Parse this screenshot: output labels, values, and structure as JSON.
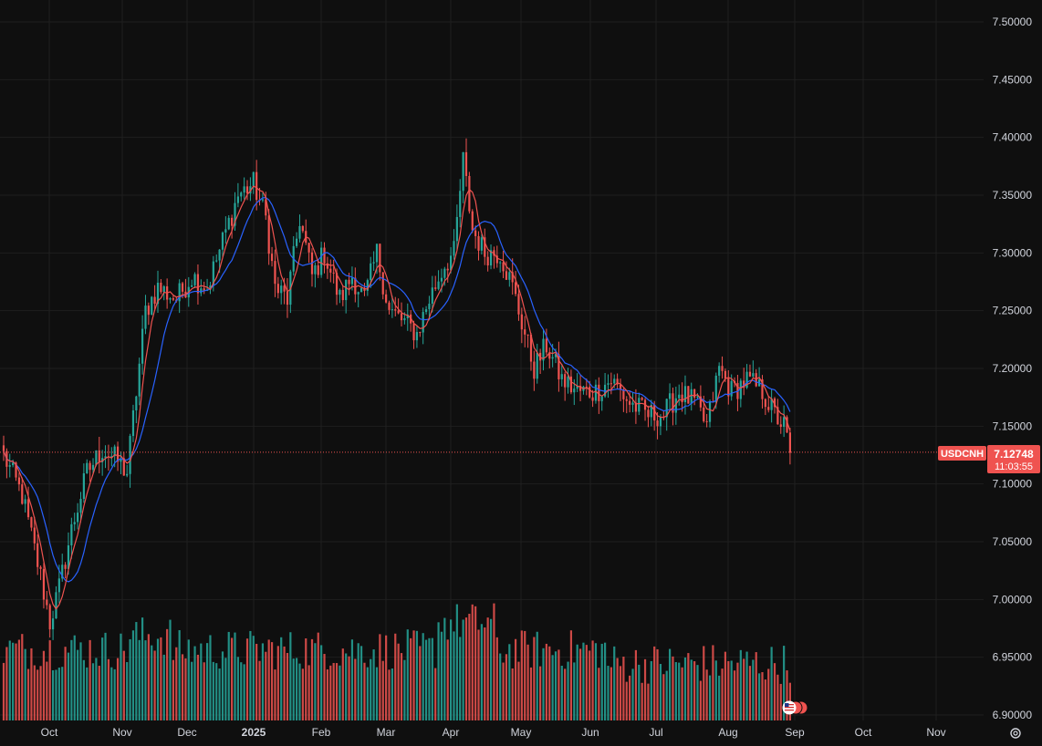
{
  "colors": {
    "background": "#0f0f0f",
    "grid": "#1f1f1f",
    "up": "#26a69a",
    "down": "#ef5350",
    "ma_fast": "#ef5350",
    "ma_slow": "#2962ff",
    "price_line": "#ef5350",
    "axis_text": "#d1d4dc"
  },
  "price_badge": {
    "symbol": "USDCNH",
    "price": "7.12748",
    "countdown": "11:03:55"
  },
  "settings_icon": "gear-icon",
  "event_flag_icon": "us-flag-icon",
  "chart_data": {
    "type": "candlestick",
    "symbol": "USDCNH",
    "ylim": [
      6.9,
      7.5
    ],
    "y_ticks": [
      "6.90000",
      "6.95000",
      "7.00000",
      "7.05000",
      "7.10000",
      "7.15000",
      "7.20000",
      "7.25000",
      "7.30000",
      "7.35000",
      "7.40000",
      "7.45000",
      "7.50000"
    ],
    "x_ticks": [
      {
        "label": "Oct",
        "bold": false
      },
      {
        "label": "Nov",
        "bold": false
      },
      {
        "label": "Dec",
        "bold": false
      },
      {
        "label": "2025",
        "bold": true
      },
      {
        "label": "Feb",
        "bold": false
      },
      {
        "label": "Mar",
        "bold": false
      },
      {
        "label": "Apr",
        "bold": false
      },
      {
        "label": "May",
        "bold": false
      },
      {
        "label": "Jun",
        "bold": false
      },
      {
        "label": "Jul",
        "bold": false
      },
      {
        "label": "Aug",
        "bold": false
      },
      {
        "label": "Sep",
        "bold": false
      },
      {
        "label": "Oct",
        "bold": false
      },
      {
        "label": "Nov",
        "bold": false
      }
    ],
    "last_price": 7.12748,
    "grid": true,
    "series": [
      {
        "type": "candlestick",
        "close_path": [
          [
            0,
            7.125
          ],
          [
            6,
            7.09
          ],
          [
            12,
            7.02
          ],
          [
            15,
            6.98
          ],
          [
            18,
            7.01
          ],
          [
            22,
            7.06
          ],
          [
            27,
            7.11
          ],
          [
            32,
            7.13
          ],
          [
            37,
            7.12
          ],
          [
            40,
            7.11
          ],
          [
            43,
            7.18
          ],
          [
            46,
            7.25
          ],
          [
            50,
            7.27
          ],
          [
            56,
            7.26
          ],
          [
            61,
            7.28
          ],
          [
            66,
            7.27
          ],
          [
            71,
            7.31
          ],
          [
            76,
            7.35
          ],
          [
            81,
            7.36
          ],
          [
            85,
            7.33
          ],
          [
            88,
            7.27
          ],
          [
            92,
            7.26
          ],
          [
            96,
            7.33
          ],
          [
            100,
            7.28
          ],
          [
            104,
            7.3
          ],
          [
            109,
            7.26
          ],
          [
            113,
            7.28
          ],
          [
            117,
            7.26
          ],
          [
            121,
            7.3
          ],
          [
            125,
            7.25
          ],
          [
            130,
            7.24
          ],
          [
            134,
            7.23
          ],
          [
            138,
            7.26
          ],
          [
            143,
            7.29
          ],
          [
            146,
            7.3
          ],
          [
            149,
            7.38
          ],
          [
            152,
            7.32
          ],
          [
            156,
            7.3
          ],
          [
            161,
            7.3
          ],
          [
            165,
            7.27
          ],
          [
            169,
            7.23
          ],
          [
            172,
            7.2
          ],
          [
            176,
            7.22
          ],
          [
            181,
            7.19
          ],
          [
            186,
            7.18
          ],
          [
            192,
            7.18
          ],
          [
            197,
            7.19
          ],
          [
            203,
            7.17
          ],
          [
            209,
            7.16
          ],
          [
            214,
            7.16
          ],
          [
            219,
            7.18
          ],
          [
            224,
            7.17
          ],
          [
            228,
            7.15
          ],
          [
            232,
            7.2
          ],
          [
            236,
            7.18
          ],
          [
            241,
            7.19
          ],
          [
            246,
            7.18
          ],
          [
            250,
            7.16
          ],
          [
            253,
            7.15
          ],
          [
            255,
            7.127
          ]
        ]
      },
      {
        "name": "MA fast",
        "type": "line"
      },
      {
        "name": "MA slow",
        "type": "line"
      },
      {
        "name": "Volume",
        "type": "bar"
      }
    ]
  }
}
